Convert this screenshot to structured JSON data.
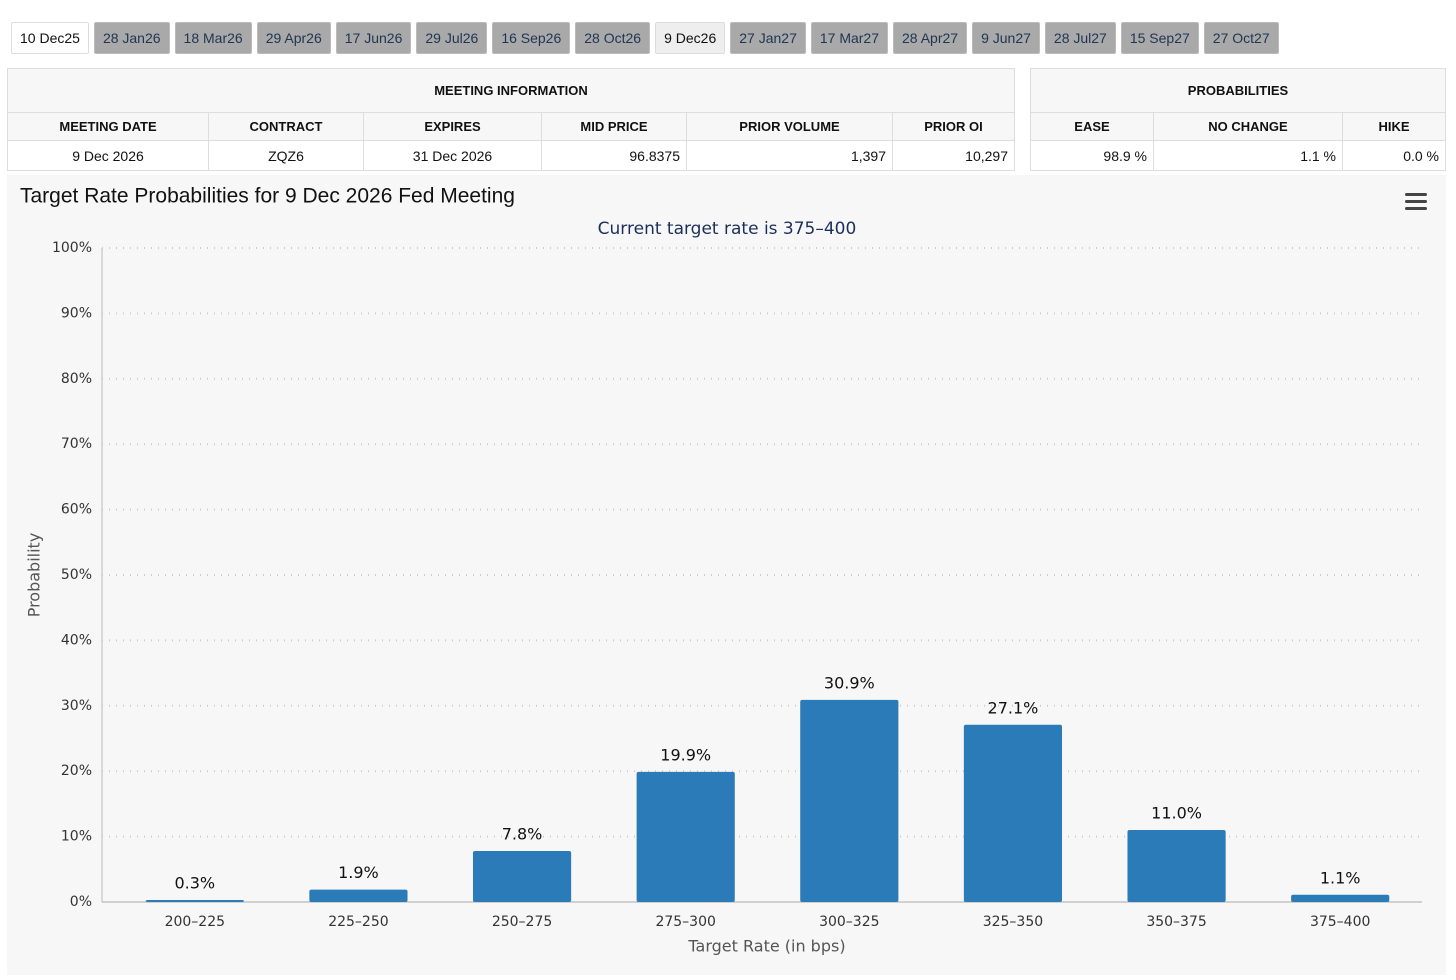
{
  "tabs": [
    "10 Dec25",
    "28 Jan26",
    "18 Mar26",
    "29 Apr26",
    "17 Jun26",
    "29 Jul26",
    "16 Sep26",
    "28 Oct26",
    "9 Dec26",
    "27 Jan27",
    "17 Mar27",
    "28 Apr27",
    "9 Jun27",
    "28 Jul27",
    "15 Sep27",
    "27 Oct27"
  ],
  "meeting_information": {
    "title": "MEETING INFORMATION",
    "headers": [
      "MEETING DATE",
      "CONTRACT",
      "EXPIRES",
      "MID PRICE",
      "PRIOR VOLUME",
      "PRIOR OI"
    ],
    "row": [
      "9 Dec 2026",
      "ZQZ6",
      "31 Dec 2026",
      "96.8375",
      "1,397",
      "10,297"
    ]
  },
  "probabilities": {
    "title": "PROBABILITIES",
    "headers": [
      "EASE",
      "NO CHANGE",
      "HIKE"
    ],
    "row": [
      "98.9 %",
      "1.1 %",
      "0.0 %"
    ]
  },
  "chart_data": {
    "type": "bar",
    "title": "Target Rate Probabilities for 9 Dec 2026 Fed Meeting",
    "subtitle": "Current target rate is 375–400",
    "x_label": "Target Rate (in bps)",
    "y_label": "Probability",
    "categories": [
      "200–225",
      "225–250",
      "250–275",
      "275–300",
      "300–325",
      "325–350",
      "350–375",
      "375–400"
    ],
    "values": [
      0.3,
      1.9,
      7.8,
      19.9,
      30.9,
      27.1,
      11.0,
      1.1
    ],
    "value_labels": [
      "0.3%",
      "1.9%",
      "7.8%",
      "19.9%",
      "30.9%",
      "27.1%",
      "11.0%",
      "1.1%"
    ],
    "color": "#2b7bb9",
    "ylim": [
      0,
      100
    ],
    "yticks": [
      {
        "value": 0,
        "label": "0%"
      },
      {
        "value": 10,
        "label": "10%"
      },
      {
        "value": 20,
        "label": "20%"
      },
      {
        "value": 30,
        "label": "30%"
      },
      {
        "value": 40,
        "label": "40%"
      },
      {
        "value": 50,
        "label": "50%"
      },
      {
        "value": 60,
        "label": "60%"
      },
      {
        "value": 70,
        "label": "70%"
      },
      {
        "value": 80,
        "label": "80%"
      },
      {
        "value": 90,
        "label": "90%"
      },
      {
        "value": 100,
        "label": "100%"
      }
    ],
    "grid": true
  }
}
